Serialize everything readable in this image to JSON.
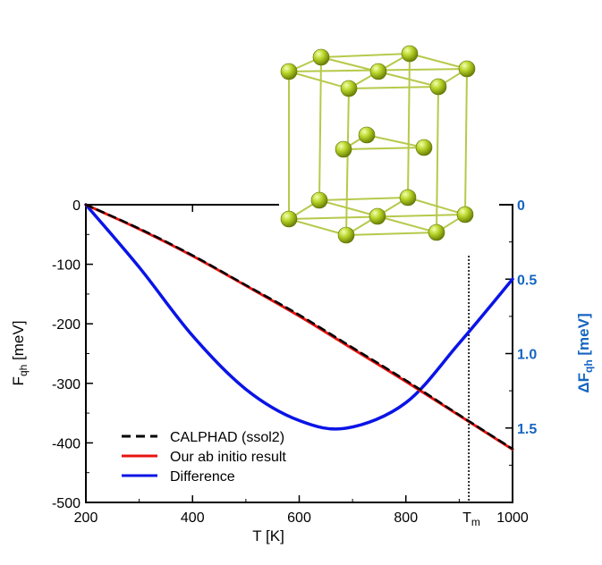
{
  "chart_data": {
    "type": "line",
    "title": "",
    "xlabel": "T [K]",
    "ylabel": "F",
    "ylabel_sub": "qh",
    "ylabel_unit": " [meV]",
    "y2label": "ΔF",
    "y2label_sub": "qh",
    "y2label_unit": " [meV]",
    "xlim": [
      200,
      1000
    ],
    "ylim": [
      -500,
      0
    ],
    "y2lim": [
      0,
      2.0
    ],
    "y2_inverted": true,
    "xticks": [
      {
        "value": 200,
        "label": "200"
      },
      {
        "value": 400,
        "label": "400"
      },
      {
        "value": 600,
        "label": "600"
      },
      {
        "value": 800,
        "label": "800"
      },
      {
        "value": 1000,
        "label": "1000"
      }
    ],
    "yticks": [
      {
        "value": 0,
        "label": "0"
      },
      {
        "value": -100,
        "label": "-100"
      },
      {
        "value": -200,
        "label": "-200"
      },
      {
        "value": -300,
        "label": "-300"
      },
      {
        "value": -400,
        "label": "-400"
      },
      {
        "value": -500,
        "label": "-500"
      }
    ],
    "y2ticks": [
      {
        "value": 0,
        "label": "0"
      },
      {
        "value": 0.5,
        "label": "0.5"
      },
      {
        "value": 1.0,
        "label": "1.0"
      },
      {
        "value": 1.5,
        "label": "1.5"
      }
    ],
    "marker": {
      "x": 918,
      "label": "T",
      "label_sub": "m",
      "style": "dotted"
    },
    "legend_position": "bottom-left",
    "series": [
      {
        "name": "CALPHAD (ssol2)",
        "axis": "left",
        "color": "#000000",
        "style": "dashed",
        "x": [
          200,
          300,
          400,
          500,
          600,
          700,
          800,
          900,
          1000
        ],
        "y": [
          0,
          -40,
          -85,
          -135,
          -185,
          -240,
          -295,
          -353,
          -410
        ]
      },
      {
        "name": "Our ab initio result",
        "axis": "left",
        "color": "#e8140f",
        "style": "solid",
        "x": [
          200,
          300,
          400,
          500,
          600,
          700,
          800,
          900,
          1000
        ],
        "y": [
          0,
          -41,
          -86,
          -136,
          -187,
          -242,
          -297,
          -354,
          -411
        ]
      },
      {
        "name": "Difference",
        "axis": "right",
        "color": "#0a14e6",
        "style": "solid",
        "x": [
          200,
          300,
          400,
          500,
          600,
          690,
          800,
          900,
          1000
        ],
        "y": [
          0,
          0.42,
          0.88,
          1.24,
          1.45,
          1.5,
          1.33,
          0.93,
          0.5
        ]
      }
    ]
  },
  "illustration": {
    "name": "hcp-crystal-structure",
    "atom_color": "#a6c41a",
    "bond_color": "#b7c94a"
  }
}
